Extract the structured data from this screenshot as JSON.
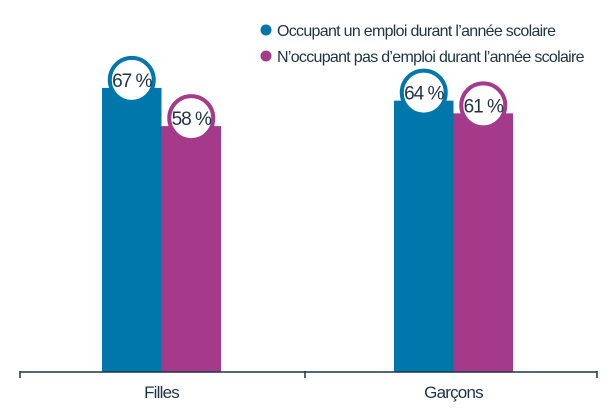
{
  "chart_data": {
    "type": "bar",
    "categories": [
      "Filles",
      "Garçons"
    ],
    "series": [
      {
        "name": "Occupant un emploi durant l’année scolaire",
        "values": [
          67,
          64
        ],
        "labels": [
          "67 %",
          "64 %"
        ],
        "color": "#0077aa"
      },
      {
        "name": "N’occupant pas d’emploi durant l’année scolaire",
        "values": [
          58,
          61
        ],
        "labels": [
          "58 %",
          "61 %"
        ],
        "color": "#a53a8a"
      }
    ],
    "unit": "%",
    "ylim": [
      0,
      100
    ],
    "grid": false,
    "legend": "top-right"
  }
}
